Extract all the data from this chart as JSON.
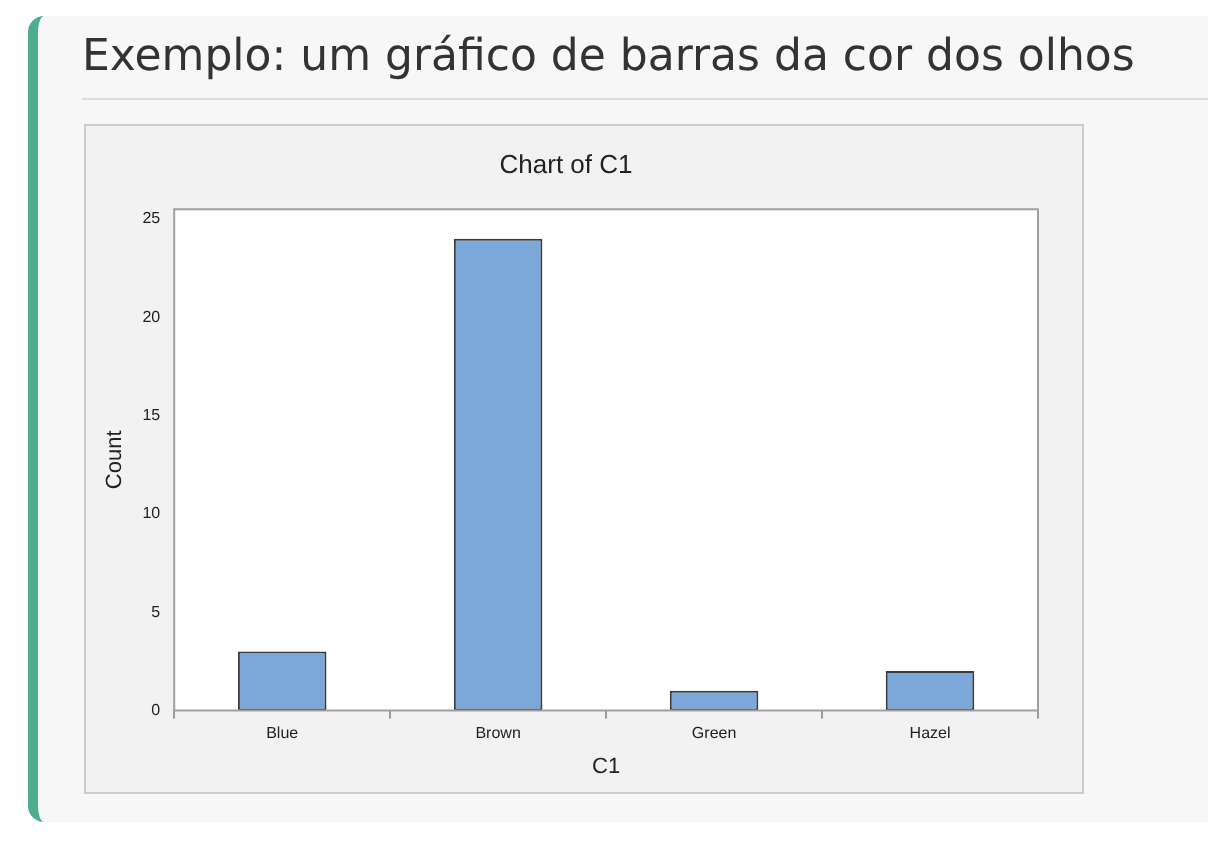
{
  "chart_data": {
    "type": "bar",
    "title": "Exemplo: um gráfico de barras da cor dos olhos",
    "subtitle": "Chart of C1",
    "xlabel": "C1",
    "ylabel": "Count",
    "categories": [
      "Blue",
      "Brown",
      "Green",
      "Hazel"
    ],
    "values": [
      3,
      24,
      1,
      2
    ],
    "color": "#7ba7d9",
    "ylim": [
      0,
      25.5
    ],
    "yticks": [
      0,
      5,
      10,
      15,
      20,
      25
    ],
    "grid": false,
    "legend": false
  }
}
